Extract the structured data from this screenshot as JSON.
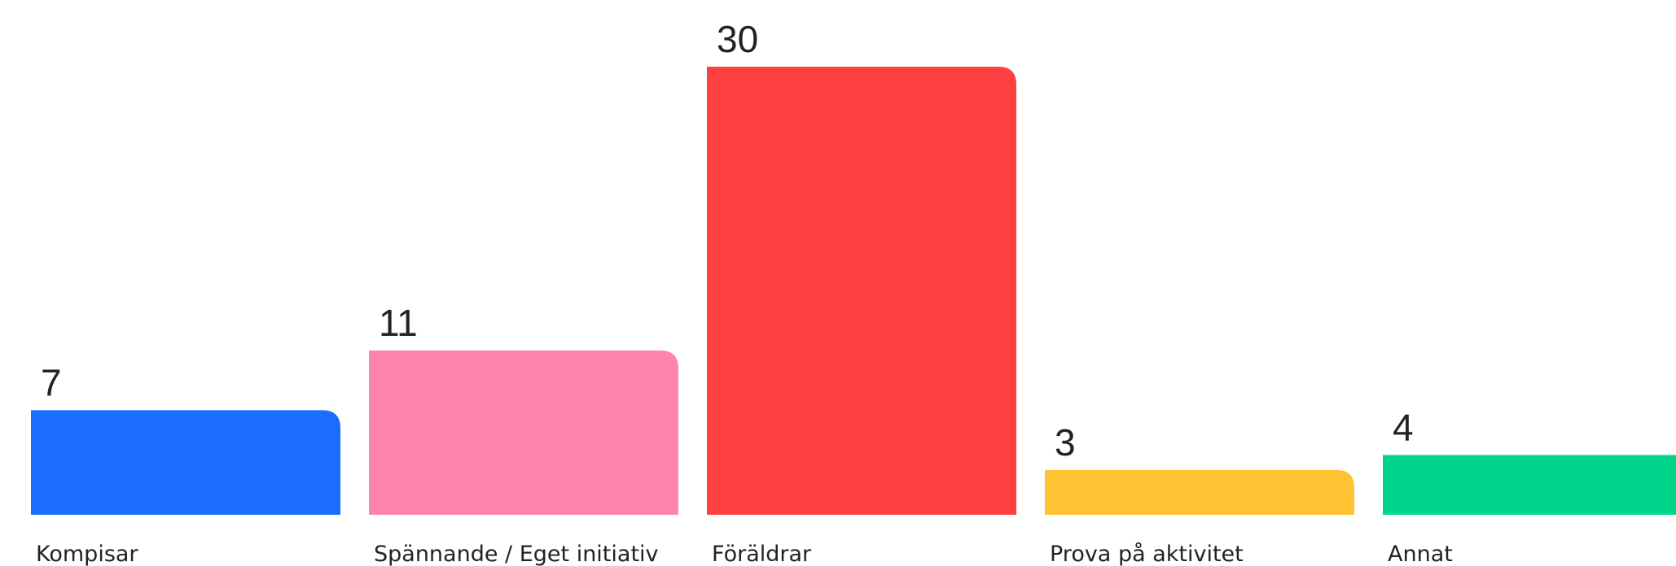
{
  "chart_data": {
    "type": "bar",
    "title": "",
    "xlabel": "",
    "ylabel": "",
    "ylim": [
      0,
      30
    ],
    "grid": false,
    "legend": "none",
    "categories": [
      "Kompisar",
      "Spännande / Eget initiativ",
      "Föräldrar",
      "Prova på aktivitet",
      "Annat"
    ],
    "values": [
      7,
      11,
      30,
      3,
      4
    ],
    "colors": [
      "#1a6dff",
      "#ff84ad",
      "#ff4040",
      "#ffc233",
      "#00d58c"
    ]
  }
}
